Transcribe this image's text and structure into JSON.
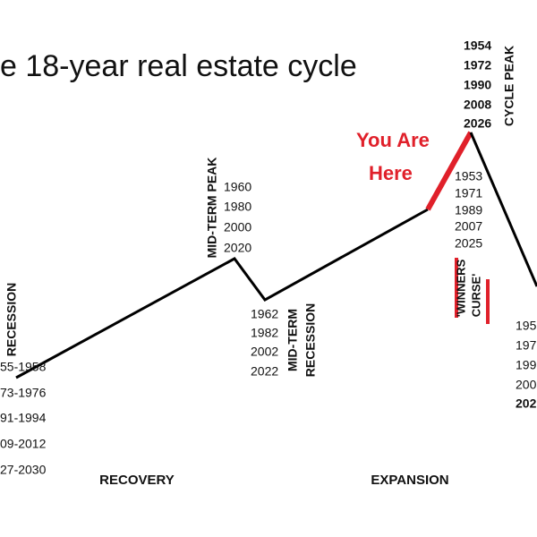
{
  "title": "e 18-year real estate cycle",
  "recession": {
    "label": "RECESSION",
    "years": [
      "55-1958",
      "73-1976",
      "91-1994",
      "09-2012",
      "27-2030"
    ]
  },
  "mid_term_peak": {
    "label": "MID-TERM PEAK",
    "years": [
      "1960",
      "1980",
      "2000",
      "2020"
    ]
  },
  "mid_term_recession": {
    "label": [
      "MID-TERM",
      "RECESSION"
    ],
    "years": [
      "1962",
      "1982",
      "2002",
      "2022"
    ]
  },
  "cycle_peak": {
    "label": "CYCLE PEAK",
    "years": [
      "1954",
      "1972",
      "1990",
      "2008",
      "2026"
    ]
  },
  "you_are_here": [
    "You Are",
    "Here"
  ],
  "winners_curse": {
    "label": [
      "'WINNERS",
      "CURSE'"
    ],
    "years": [
      "1953",
      "1971",
      "1989",
      "2007",
      "2025"
    ]
  },
  "next_recession": {
    "years": [
      "195",
      "197",
      "199",
      "200",
      "202"
    ]
  },
  "phases": [
    "RECOVERY",
    "EXPANSION"
  ]
}
